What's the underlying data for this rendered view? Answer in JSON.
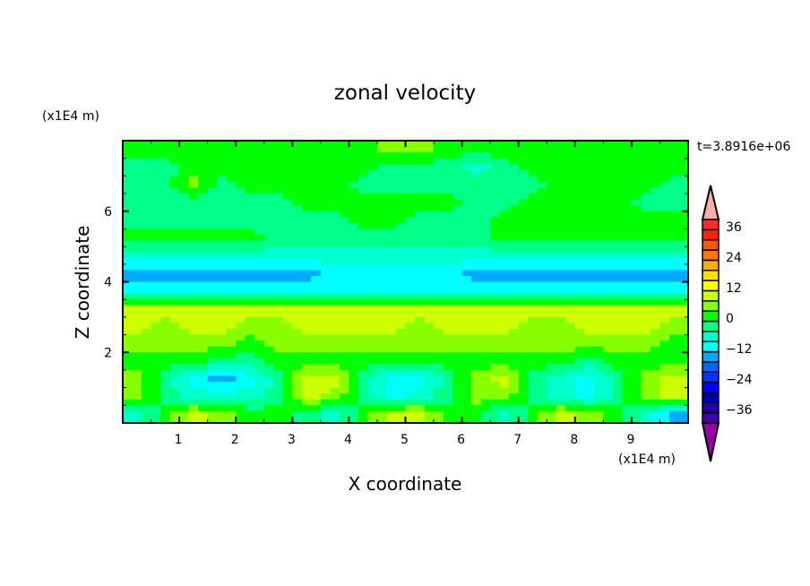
{
  "chart_data": {
    "type": "heatmap",
    "title": "zonal velocity",
    "xlabel": "X coordinate",
    "ylabel": "Z coordinate",
    "x_unit_label": "(x1E4 m)",
    "y_unit_label": "(x1E4 m)",
    "time_label": "t=3.8916e+06",
    "xlim": [
      0,
      10
    ],
    "ylim": [
      0,
      8
    ],
    "xticks": [
      1,
      2,
      3,
      4,
      5,
      6,
      7,
      8,
      9
    ],
    "yticks": [
      2,
      4,
      6
    ],
    "grid": false,
    "x": [
      0.25,
      0.75,
      1.25,
      1.75,
      2.25,
      2.75,
      3.25,
      3.75,
      4.25,
      4.75,
      5.25,
      5.75,
      6.25,
      6.75,
      7.25,
      7.75,
      8.25,
      8.75,
      9.25,
      9.75
    ],
    "y": [
      7.75,
      7.25,
      6.75,
      6.25,
      5.75,
      5.25,
      4.75,
      4.25,
      3.75,
      3.25,
      2.75,
      2.25,
      1.75,
      1.25,
      0.75,
      0.25
    ],
    "z": [
      [
        2,
        2,
        2,
        2,
        2,
        2,
        2,
        2,
        2,
        6,
        6,
        2,
        2,
        2,
        2,
        2,
        2,
        2,
        2,
        2
      ],
      [
        -2,
        -2,
        2,
        2,
        2,
        2,
        2,
        2,
        2,
        -2,
        -2,
        -2,
        -6,
        -2,
        2,
        2,
        2,
        2,
        2,
        2
      ],
      [
        -2,
        -2,
        6,
        -2,
        2,
        2,
        2,
        2,
        -2,
        -2,
        -2,
        -2,
        -2,
        -2,
        -2,
        2,
        2,
        2,
        2,
        -2
      ],
      [
        -2,
        -2,
        -2,
        -2,
        -2,
        -2,
        2,
        2,
        2,
        2,
        2,
        2,
        -2,
        -2,
        2,
        2,
        2,
        2,
        -2,
        -2
      ],
      [
        -2,
        -2,
        -2,
        -2,
        -2,
        -2,
        -2,
        -2,
        2,
        2,
        -2,
        -2,
        -2,
        2,
        2,
        2,
        2,
        2,
        2,
        2
      ],
      [
        2,
        2,
        2,
        2,
        2,
        -2,
        -2,
        -2,
        -2,
        -2,
        -2,
        -2,
        -2,
        2,
        2,
        2,
        2,
        2,
        2,
        2
      ],
      [
        -6,
        -6,
        -6,
        -6,
        -6,
        -6,
        -6,
        -6,
        -6,
        -6,
        -6,
        -6,
        -6,
        -6,
        -6,
        -6,
        -6,
        -6,
        -6,
        -6
      ],
      [
        -14,
        -14,
        -14,
        -14,
        -14,
        -14,
        -14,
        -10,
        -10,
        -10,
        -10,
        -10,
        -14,
        -14,
        -14,
        -14,
        -14,
        -14,
        -14,
        -14
      ],
      [
        -10,
        -10,
        -10,
        -10,
        -10,
        -10,
        -10,
        -10,
        -10,
        -10,
        -10,
        -10,
        -10,
        -10,
        -10,
        -10,
        -10,
        -10,
        -10,
        -10
      ],
      [
        10,
        10,
        10,
        10,
        10,
        10,
        10,
        10,
        10,
        10,
        10,
        10,
        10,
        10,
        10,
        10,
        10,
        10,
        10,
        10
      ],
      [
        10,
        6,
        10,
        10,
        6,
        6,
        10,
        10,
        10,
        10,
        6,
        10,
        10,
        10,
        6,
        6,
        10,
        10,
        10,
        6
      ],
      [
        6,
        6,
        6,
        6,
        2,
        6,
        6,
        6,
        6,
        6,
        6,
        6,
        6,
        6,
        6,
        6,
        6,
        6,
        6,
        2
      ],
      [
        2,
        2,
        2,
        -2,
        -2,
        2,
        2,
        2,
        2,
        2,
        2,
        2,
        2,
        2,
        2,
        2,
        -2,
        2,
        2,
        2
      ],
      [
        6,
        -2,
        -10,
        -14,
        -10,
        -2,
        10,
        10,
        -2,
        -10,
        -10,
        -2,
        6,
        10,
        -2,
        -6,
        -10,
        -2,
        6,
        10
      ],
      [
        6,
        -2,
        -6,
        -6,
        -6,
        -2,
        10,
        6,
        -2,
        -10,
        -6,
        -2,
        6,
        6,
        -2,
        -6,
        -10,
        -2,
        6,
        10
      ],
      [
        -6,
        2,
        10,
        6,
        2,
        2,
        -2,
        -6,
        2,
        10,
        10,
        2,
        2,
        -6,
        2,
        10,
        6,
        2,
        -6,
        -14
      ]
    ],
    "colorbar": {
      "levels": [
        -40,
        -36,
        -32,
        -28,
        -24,
        -20,
        -16,
        -12,
        -8,
        -4,
        0,
        4,
        8,
        12,
        16,
        20,
        24,
        28,
        32,
        36,
        40
      ],
      "tick_labels": [
        "36",
        "24",
        "12",
        "0",
        "-12",
        "-24",
        "-36"
      ],
      "tick_values": [
        36,
        24,
        12,
        0,
        -12,
        -24,
        -36
      ],
      "colors": [
        "#4400aa",
        "#2200aa",
        "#0000aa",
        "#0000ff",
        "#0033ff",
        "#0066ff",
        "#00aaff",
        "#00ffff",
        "#00ffcc",
        "#00ff88",
        "#00ff00",
        "#88ff00",
        "#ccff00",
        "#ffff00",
        "#ffdd00",
        "#ffaa00",
        "#ff7700",
        "#ff5500",
        "#ff2200",
        "#ff2a2a"
      ],
      "under_color": "#9900aa",
      "over_color": "#ffaaaa",
      "extend": "both"
    }
  }
}
